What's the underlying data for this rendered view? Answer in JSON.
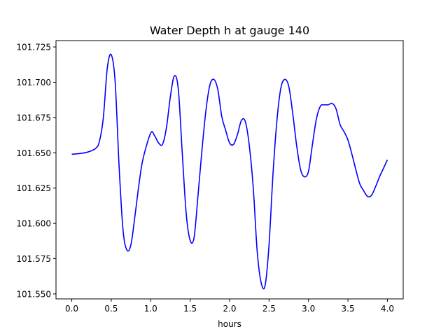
{
  "chart_data": {
    "type": "line",
    "title": "Water Depth h at gauge 140",
    "xlabel": "hours",
    "ylabel": "",
    "xlim": [
      -0.2,
      4.2
    ],
    "ylim": [
      101.5465,
      101.7295
    ],
    "xticks": [
      0.0,
      0.5,
      1.0,
      1.5,
      2.0,
      2.5,
      3.0,
      3.5,
      4.0
    ],
    "xtick_labels": [
      "0.0",
      "0.5",
      "1.0",
      "1.5",
      "2.0",
      "2.5",
      "3.0",
      "3.5",
      "4.0"
    ],
    "yticks": [
      101.55,
      101.575,
      101.6,
      101.625,
      101.65,
      101.675,
      101.7,
      101.725
    ],
    "ytick_labels": [
      "101.550",
      "101.575",
      "101.600",
      "101.625",
      "101.650",
      "101.675",
      "101.700",
      "101.725"
    ],
    "grid": false,
    "series": [
      {
        "color": "#0000ff",
        "x": [
          0.0,
          0.1,
          0.2,
          0.3,
          0.35,
          0.4,
          0.45,
          0.5,
          0.55,
          0.6,
          0.65,
          0.7,
          0.75,
          0.8,
          0.85,
          0.9,
          1.0,
          1.05,
          1.1,
          1.15,
          1.2,
          1.25,
          1.3,
          1.35,
          1.4,
          1.45,
          1.5,
          1.55,
          1.6,
          1.65,
          1.7,
          1.75,
          1.8,
          1.85,
          1.9,
          1.95,
          2.0,
          2.05,
          2.1,
          2.15,
          2.2,
          2.25,
          2.3,
          2.35,
          2.4,
          2.45,
          2.5,
          2.55,
          2.6,
          2.65,
          2.7,
          2.75,
          2.8,
          2.85,
          2.9,
          2.95,
          3.0,
          3.05,
          3.1,
          3.15,
          3.2,
          3.25,
          3.3,
          3.35,
          3.4,
          3.45,
          3.5,
          3.55,
          3.6,
          3.65,
          3.7,
          3.75,
          3.8,
          3.85,
          3.9,
          3.95,
          4.0
        ],
        "y": [
          101.649,
          101.6495,
          101.6505,
          101.653,
          101.658,
          101.675,
          101.71,
          101.7195,
          101.7,
          101.64,
          101.595,
          101.581,
          101.585,
          101.605,
          101.627,
          101.645,
          101.664,
          101.662,
          101.657,
          101.656,
          101.668,
          101.69,
          101.7045,
          101.695,
          101.65,
          101.607,
          101.588,
          101.59,
          101.62,
          101.652,
          101.68,
          101.698,
          101.702,
          101.695,
          101.676,
          101.666,
          101.657,
          101.656,
          101.663,
          101.673,
          101.672,
          101.655,
          101.625,
          101.58,
          101.558,
          101.556,
          101.585,
          101.635,
          101.673,
          101.696,
          101.702,
          101.697,
          101.678,
          101.655,
          101.638,
          101.633,
          101.637,
          101.656,
          101.674,
          101.683,
          101.684,
          101.684,
          101.685,
          101.681,
          101.67,
          101.665,
          101.659,
          101.649,
          101.638,
          101.628,
          101.623,
          101.619,
          101.62,
          101.626,
          101.633,
          101.639,
          101.645
        ]
      }
    ]
  }
}
